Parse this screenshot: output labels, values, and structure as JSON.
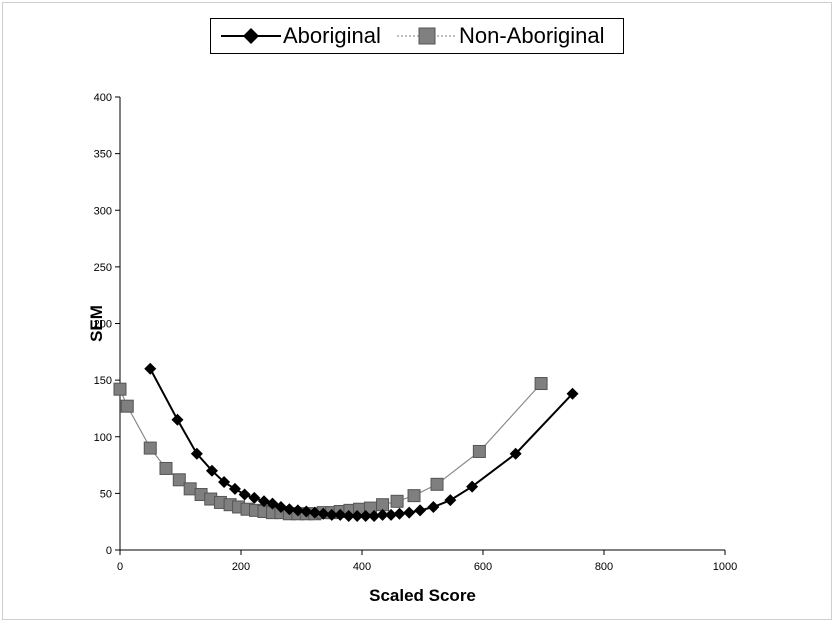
{
  "chart_data": {
    "type": "line",
    "xlabel": "Scaled Score",
    "ylabel": "SEM",
    "xlim": [
      0,
      1000
    ],
    "ylim": [
      0,
      400
    ],
    "x_ticks": [
      0,
      200,
      400,
      600,
      800,
      1000
    ],
    "y_ticks": [
      0,
      50,
      100,
      150,
      200,
      250,
      300,
      350,
      400
    ],
    "grid": false,
    "legend_position": "top",
    "series": [
      {
        "name": "Aboriginal",
        "marker": "diamond",
        "color": "#000000",
        "x": [
          50,
          95,
          127,
          152,
          172,
          190,
          206,
          222,
          238,
          252,
          266,
          280,
          294,
          308,
          322,
          336,
          350,
          364,
          378,
          392,
          406,
          420,
          434,
          448,
          462,
          478,
          496,
          518,
          546,
          582,
          654,
          748
        ],
        "y": [
          160,
          115,
          85,
          70,
          60,
          54,
          49,
          46,
          43,
          41,
          38,
          36,
          35,
          34,
          33,
          32,
          31,
          31,
          30,
          30,
          30,
          30,
          31,
          31,
          32,
          33,
          35,
          38,
          44,
          56,
          85,
          138
        ]
      },
      {
        "name": "Non-Aboriginal",
        "marker": "square",
        "color": "#808080",
        "x": [
          0,
          12,
          50,
          76,
          98,
          116,
          134,
          150,
          166,
          182,
          196,
          210,
          224,
          238,
          252,
          266,
          280,
          294,
          308,
          322,
          336,
          350,
          364,
          380,
          396,
          414,
          434,
          458,
          486,
          524,
          594,
          696
        ],
        "y": [
          142,
          127,
          90,
          72,
          62,
          54,
          49,
          45,
          42,
          40,
          38,
          36,
          35,
          34,
          33,
          33,
          32,
          32,
          32,
          32,
          33,
          33,
          34,
          35,
          36,
          37,
          40,
          43,
          48,
          58,
          87,
          147
        ]
      }
    ]
  }
}
